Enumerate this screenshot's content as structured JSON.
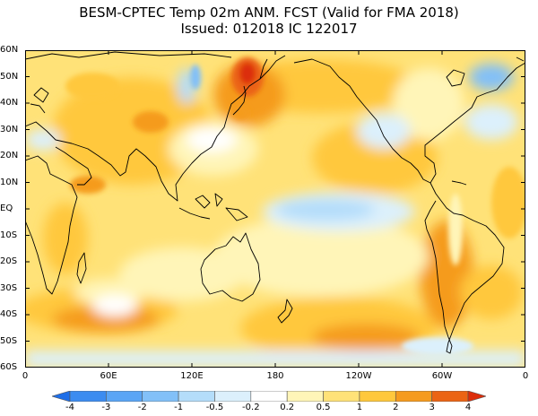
{
  "title": {
    "line1": "BESM-CPTEC Temp 02m ANM. FCST  (Valid for FMA 2018)",
    "line2": "Issued:  012018 IC 122017"
  },
  "map": {
    "lat_labels": [
      "60N",
      "50N",
      "40N",
      "30N",
      "20N",
      "10N",
      "EQ",
      "10S",
      "20S",
      "30S",
      "40S",
      "50S",
      "60S"
    ],
    "lon_labels": [
      "0",
      "60E",
      "120E",
      "180",
      "120W",
      "60W",
      "0"
    ],
    "extent": {
      "lon_min": 0,
      "lon_max": 360,
      "lat_min": -60,
      "lat_max": 60
    }
  },
  "colorbar": {
    "ticks": [
      "-4",
      "-3",
      "-2",
      "-1",
      "-0.5",
      "-0.2",
      "0.2",
      "0.5",
      "1",
      "2",
      "3",
      "4"
    ],
    "colors": [
      "#1e6ee8",
      "#3c8cf0",
      "#5aa5f5",
      "#82c0f8",
      "#b4ddfa",
      "#dcf0fc",
      "#ffffff",
      "#fff5b8",
      "#ffe278",
      "#ffc83c",
      "#f59b1e",
      "#eb6414",
      "#dc2d0a"
    ]
  }
}
